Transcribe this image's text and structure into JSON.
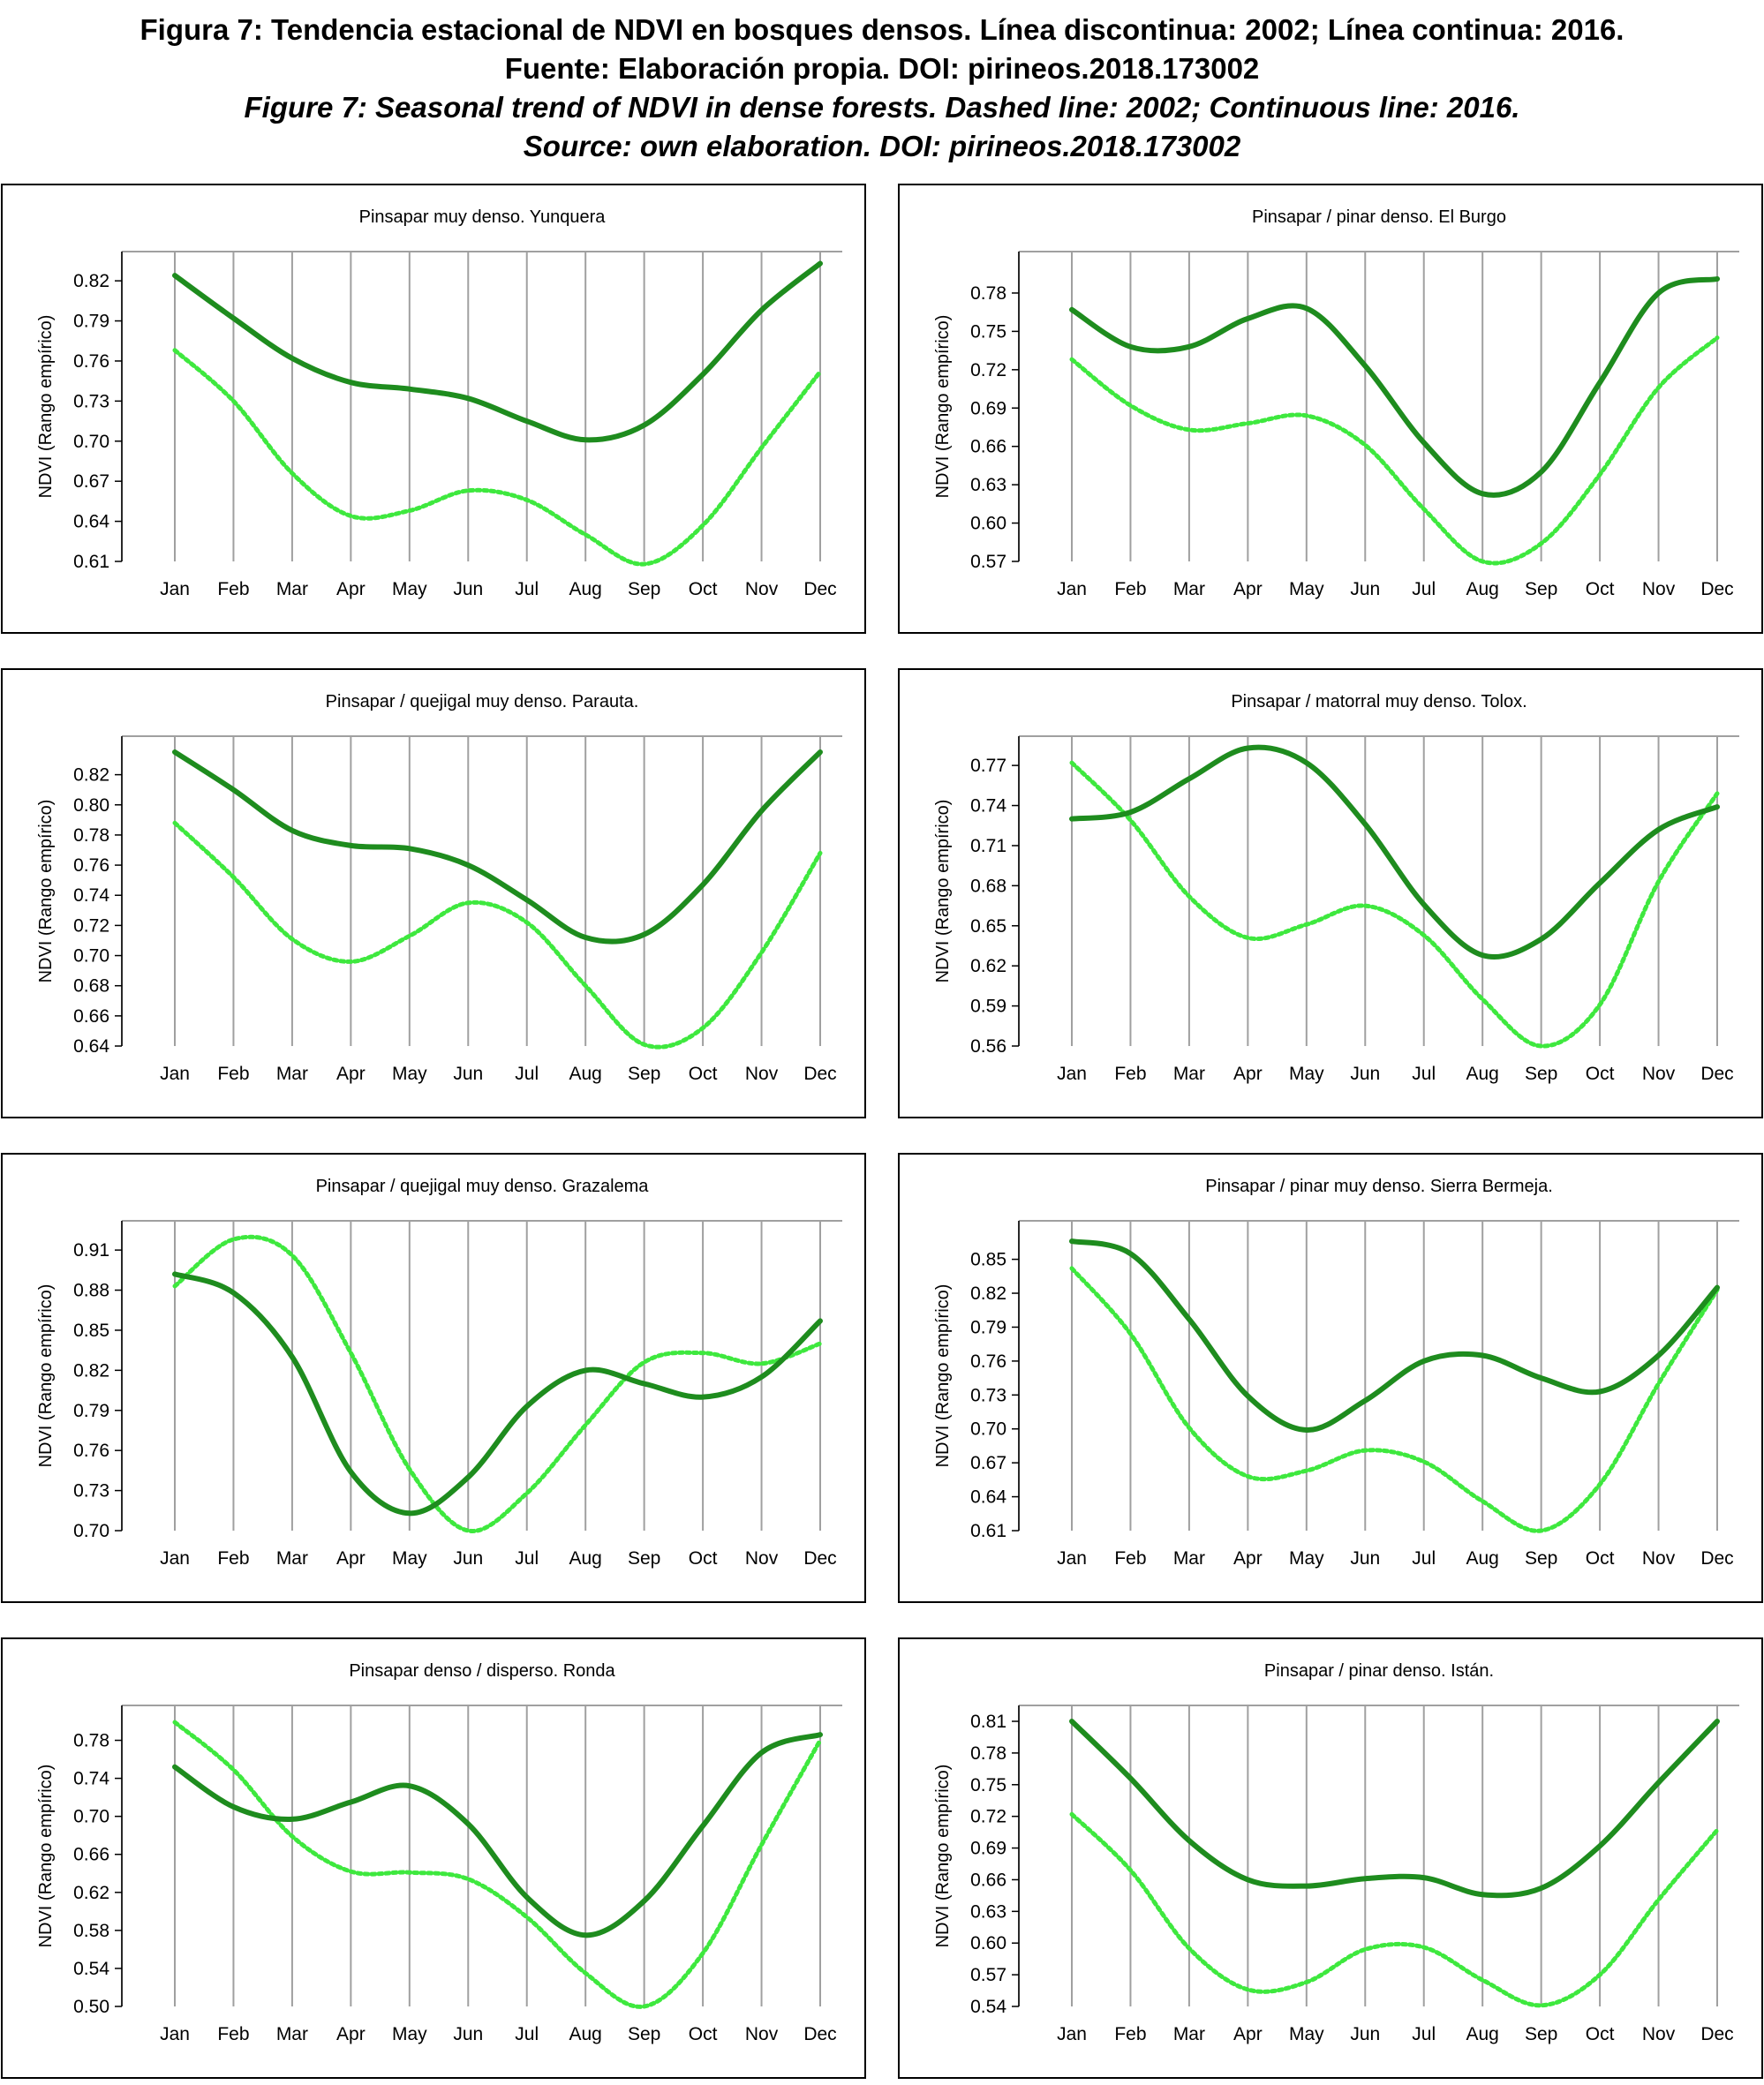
{
  "caption": {
    "es_line1": "Figura 7: Tendencia estacional de NDVI en bosques densos. Línea discontinua: 2002; Línea continua: 2016.",
    "es_line2": "Fuente: Elaboración propia. DOI: pirineos.2018.173002",
    "en_line1": "Figure 7: Seasonal trend of NDVI in dense forests. Dashed line: 2002; Continuous line: 2016.",
    "en_line2": "Source: own elaboration. DOI: pirineos.2018.173002"
  },
  "colors": {
    "line_2016": "#1e8c1e",
    "line_2002": "#3ee83e",
    "grid": "#a0a0a0"
  },
  "chart_data": [
    {
      "type": "line",
      "title": "Pinsapar muy denso. Yunquera",
      "ylabel": "NDVI (Rango empírico)",
      "categories": [
        "Jan",
        "Feb",
        "Mar",
        "Apr",
        "May",
        "Jun",
        "Jul",
        "Aug",
        "Sep",
        "Oct",
        "Nov",
        "Dec"
      ],
      "yticks": [
        "0.61",
        "0.64",
        "0.67",
        "0.70",
        "0.73",
        "0.76",
        "0.79",
        "0.82"
      ],
      "ylim": [
        0.61,
        0.83
      ],
      "series": [
        {
          "style": "solid",
          "values": [
            0.824,
            0.792,
            0.762,
            0.744,
            0.739,
            0.732,
            0.715,
            0.701,
            0.712,
            0.75,
            0.798,
            0.833
          ]
        },
        {
          "style": "dashed",
          "values": [
            0.768,
            0.73,
            0.676,
            0.644,
            0.648,
            0.663,
            0.656,
            0.63,
            0.608,
            0.637,
            0.695,
            0.752
          ]
        }
      ]
    },
    {
      "type": "line",
      "title": "Pinsapar / pinar denso. El Burgo",
      "ylabel": "NDVI (Rango empírico)",
      "categories": [
        "Jan",
        "Feb",
        "Mar",
        "Apr",
        "May",
        "Jun",
        "Jul",
        "Aug",
        "Sep",
        "Oct",
        "Nov",
        "Dec"
      ],
      "yticks": [
        "0.57",
        "0.60",
        "0.63",
        "0.66",
        "0.69",
        "0.72",
        "0.75",
        "0.78"
      ],
      "ylim": [
        0.57,
        0.8
      ],
      "series": [
        {
          "style": "solid",
          "values": [
            0.767,
            0.738,
            0.738,
            0.76,
            0.768,
            0.723,
            0.663,
            0.623,
            0.64,
            0.71,
            0.78,
            0.791
          ]
        },
        {
          "style": "dashed",
          "values": [
            0.728,
            0.692,
            0.673,
            0.678,
            0.684,
            0.661,
            0.611,
            0.57,
            0.584,
            0.638,
            0.706,
            0.745
          ]
        }
      ]
    },
    {
      "type": "line",
      "title": "Pinsapar / quejigal muy denso. Parauta.",
      "ylabel": "NDVI (Rango empírico)",
      "categories": [
        "Jan",
        "Feb",
        "Mar",
        "Apr",
        "May",
        "Jun",
        "Jul",
        "Aug",
        "Sep",
        "Oct",
        "Nov",
        "Dec"
      ],
      "yticks": [
        "0.64",
        "0.66",
        "0.68",
        "0.70",
        "0.72",
        "0.74",
        "0.76",
        "0.78",
        "0.80",
        "0.82"
      ],
      "ylim": [
        0.64,
        0.835
      ],
      "series": [
        {
          "style": "solid",
          "values": [
            0.835,
            0.81,
            0.783,
            0.773,
            0.771,
            0.76,
            0.737,
            0.712,
            0.714,
            0.747,
            0.796,
            0.835
          ]
        },
        {
          "style": "dashed",
          "values": [
            0.788,
            0.752,
            0.711,
            0.696,
            0.713,
            0.735,
            0.722,
            0.68,
            0.641,
            0.652,
            0.702,
            0.768
          ]
        }
      ]
    },
    {
      "type": "line",
      "title": "Pinsapar / matorral muy denso. Tolox.",
      "ylabel": "NDVI (Rango empírico)",
      "categories": [
        "Jan",
        "Feb",
        "Mar",
        "Apr",
        "May",
        "Jun",
        "Jul",
        "Aug",
        "Sep",
        "Oct",
        "Nov",
        "Dec"
      ],
      "yticks": [
        "0.56",
        "0.59",
        "0.62",
        "0.65",
        "0.68",
        "0.71",
        "0.74",
        "0.77"
      ],
      "ylim": [
        0.56,
        0.78
      ],
      "series": [
        {
          "style": "solid",
          "values": [
            0.73,
            0.735,
            0.76,
            0.783,
            0.772,
            0.726,
            0.666,
            0.628,
            0.64,
            0.682,
            0.722,
            0.739
          ]
        },
        {
          "style": "dashed",
          "values": [
            0.772,
            0.729,
            0.672,
            0.641,
            0.651,
            0.665,
            0.643,
            0.595,
            0.56,
            0.591,
            0.683,
            0.749
          ]
        }
      ]
    },
    {
      "type": "line",
      "title": "Pinsapar / quejigal muy denso. Grazalema",
      "ylabel": "NDVI (Rango empírico)",
      "categories": [
        "Jan",
        "Feb",
        "Mar",
        "Apr",
        "May",
        "Jun",
        "Jul",
        "Aug",
        "Sep",
        "Oct",
        "Nov",
        "Dec"
      ],
      "yticks": [
        "0.70",
        "0.73",
        "0.76",
        "0.79",
        "0.82",
        "0.85",
        "0.88",
        "0.91"
      ],
      "ylim": [
        0.7,
        0.92
      ],
      "series": [
        {
          "style": "solid",
          "values": [
            0.892,
            0.878,
            0.83,
            0.744,
            0.713,
            0.74,
            0.793,
            0.82,
            0.81,
            0.8,
            0.815,
            0.857
          ]
        },
        {
          "style": "dashed",
          "values": [
            0.883,
            0.918,
            0.906,
            0.833,
            0.746,
            0.7,
            0.728,
            0.779,
            0.826,
            0.833,
            0.825,
            0.84
          ]
        }
      ]
    },
    {
      "type": "line",
      "title": "Pinsapar / pinar muy denso. Sierra Bermeja.",
      "ylabel": "NDVI (Rango empírico)",
      "categories": [
        "Jan",
        "Feb",
        "Mar",
        "Apr",
        "May",
        "Jun",
        "Jul",
        "Aug",
        "Sep",
        "Oct",
        "Nov",
        "Dec"
      ],
      "yticks": [
        "0.61",
        "0.64",
        "0.67",
        "0.70",
        "0.73",
        "0.76",
        "0.79",
        "0.82",
        "0.85"
      ],
      "ylim": [
        0.61,
        0.87
      ],
      "series": [
        {
          "style": "solid",
          "values": [
            0.866,
            0.855,
            0.797,
            0.729,
            0.699,
            0.725,
            0.76,
            0.765,
            0.745,
            0.733,
            0.765,
            0.825
          ]
        },
        {
          "style": "dashed",
          "values": [
            0.842,
            0.784,
            0.701,
            0.658,
            0.663,
            0.681,
            0.671,
            0.636,
            0.61,
            0.651,
            0.74,
            0.823
          ]
        }
      ]
    },
    {
      "type": "line",
      "title": "Pinsapar denso / disperso. Ronda",
      "ylabel": "NDVI (Rango empírico)",
      "categories": [
        "Jan",
        "Feb",
        "Mar",
        "Apr",
        "May",
        "Jun",
        "Jul",
        "Aug",
        "Sep",
        "Oct",
        "Nov",
        "Dec"
      ],
      "yticks": [
        "0.50",
        "0.54",
        "0.58",
        "0.62",
        "0.66",
        "0.70",
        "0.74",
        "0.78"
      ],
      "ylim": [
        0.5,
        0.8
      ],
      "series": [
        {
          "style": "solid",
          "values": [
            0.752,
            0.71,
            0.697,
            0.715,
            0.732,
            0.692,
            0.615,
            0.575,
            0.611,
            0.69,
            0.767,
            0.786
          ]
        },
        {
          "style": "dashed",
          "values": [
            0.799,
            0.749,
            0.679,
            0.642,
            0.641,
            0.634,
            0.594,
            0.535,
            0.5,
            0.556,
            0.67,
            0.78
          ]
        }
      ]
    },
    {
      "type": "line",
      "title": "Pinsapar / pinar denso. Istán.",
      "ylabel": "NDVI (Rango empírico)",
      "categories": [
        "Jan",
        "Feb",
        "Mar",
        "Apr",
        "May",
        "Jun",
        "Jul",
        "Aug",
        "Sep",
        "Oct",
        "Nov",
        "Dec"
      ],
      "yticks": [
        "0.54",
        "0.57",
        "0.60",
        "0.63",
        "0.66",
        "0.69",
        "0.72",
        "0.75",
        "0.78",
        "0.81"
      ],
      "ylim": [
        0.54,
        0.81
      ],
      "series": [
        {
          "style": "solid",
          "values": [
            0.81,
            0.756,
            0.697,
            0.66,
            0.654,
            0.661,
            0.662,
            0.646,
            0.652,
            0.692,
            0.752,
            0.81
          ]
        },
        {
          "style": "dashed",
          "values": [
            0.722,
            0.669,
            0.595,
            0.556,
            0.563,
            0.594,
            0.596,
            0.565,
            0.541,
            0.57,
            0.641,
            0.707
          ]
        }
      ]
    }
  ]
}
